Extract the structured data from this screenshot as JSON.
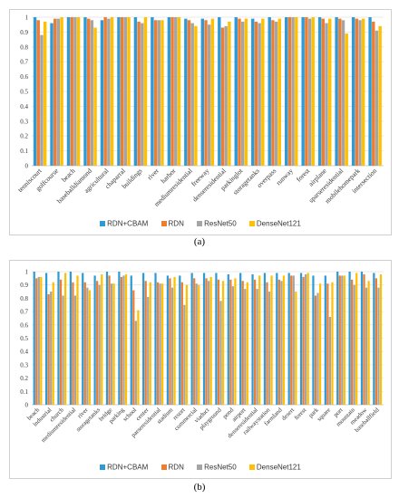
{
  "colors": [
    "#2e9bd6",
    "#ed7d31",
    "#a5a5a5",
    "#ffc000"
  ],
  "chart_data": [
    {
      "type": "bar",
      "panel_label": "(a)",
      "ylim": [
        0,
        1
      ],
      "yticks": [
        "0",
        "0.1",
        "0.2",
        "0.3",
        "0.4",
        "0.5",
        "0.6",
        "0.7",
        "0.8",
        "0.9",
        "1"
      ],
      "grid": true,
      "legend_position": "bottom",
      "categories": [
        "tenniscourt",
        "golfcourse",
        "beach",
        "baseballdiamond",
        "agricultural",
        "chaparral",
        "buildings",
        "river",
        "harbor",
        "mediumresidential",
        "freeway",
        "denseresidential",
        "parkinglot",
        "storagetanks",
        "overpass",
        "runway",
        "forest",
        "airplane",
        "sparseresidential",
        "mobilehomepark",
        "intersection"
      ],
      "series": [
        {
          "name": "RDN+CBAM",
          "values": [
            1,
            0.96,
            1,
            1,
            0.98,
            1,
            1,
            1,
            1,
            0.99,
            0.99,
            1,
            1,
            0.99,
            1,
            1,
            1,
            1,
            1,
            1,
            1
          ]
        },
        {
          "name": "RDN",
          "values": [
            0.98,
            0.99,
            1,
            0.99,
            1,
            1,
            0.97,
            0.98,
            1,
            0.98,
            0.98,
            0.93,
            0.99,
            0.97,
            0.98,
            1,
            1,
            0.99,
            0.99,
            0.99,
            0.97
          ]
        },
        {
          "name": "ResNet50",
          "values": [
            0.88,
            0.99,
            1,
            0.98,
            0.99,
            1,
            0.96,
            0.98,
            1,
            0.96,
            0.95,
            0.94,
            0.97,
            0.96,
            0.97,
            1,
            0.99,
            0.96,
            0.98,
            0.98,
            0.91
          ]
        },
        {
          "name": "DenseNet121",
          "values": [
            0.97,
            1,
            1,
            0.93,
            1,
            1,
            1,
            0.98,
            1,
            0.94,
            0.99,
            0.97,
            0.99,
            0.99,
            0.99,
            1,
            1,
            0.99,
            0.89,
            0.99,
            0.94
          ]
        }
      ]
    },
    {
      "type": "bar",
      "panel_label": "(b)",
      "ylim": [
        0,
        1
      ],
      "yticks": [
        "0",
        "0.1",
        "0.2",
        "0.3",
        "0.4",
        "0.5",
        "0.6",
        "0.7",
        "0.8",
        "0.9",
        "1"
      ],
      "grid": true,
      "legend_position": "bottom",
      "categories": [
        "beach",
        "industrial",
        "church",
        "mediumresidential",
        "river",
        "storagetanks",
        "bridge",
        "parking",
        "school",
        "center",
        "parseresidential",
        "stadium",
        "resort",
        "commercial",
        "viaduct",
        "playground",
        "pond",
        "airport",
        "denseresidential",
        "railwaystation",
        "farmland",
        "desert",
        "forest",
        "park",
        "square",
        "port",
        "mountain",
        "meadow",
        "baseballfield"
      ],
      "series": [
        {
          "name": "RDN+CBAM",
          "values": [
            1,
            0.99,
            1,
            1,
            0.99,
            0.97,
            1,
            1,
            0.97,
            0.99,
            0.99,
            0.97,
            0.97,
            0.99,
            0.99,
            0.99,
            0.98,
            0.99,
            0.98,
            0.99,
            0.99,
            0.99,
            0.99,
            0.97,
            0.97,
            1,
            1,
            1,
            0.99
          ]
        },
        {
          "name": "RDN",
          "values": [
            0.95,
            0.83,
            0.94,
            0.92,
            0.92,
            0.93,
            0.97,
            0.96,
            0.86,
            0.93,
            0.92,
            0.95,
            0.92,
            0.95,
            0.95,
            0.94,
            0.94,
            0.93,
            0.94,
            0.92,
            0.94,
            0.97,
            0.96,
            0.82,
            0.91,
            0.97,
            0.94,
            0.98,
            0.95
          ]
        },
        {
          "name": "ResNet50",
          "values": [
            0.96,
            0.85,
            0.82,
            0.82,
            0.88,
            0.9,
            0.91,
            0.97,
            0.63,
            0.81,
            0.91,
            0.88,
            0.75,
            0.91,
            0.93,
            0.78,
            0.89,
            0.87,
            0.87,
            0.85,
            0.93,
            0.97,
            0.98,
            0.84,
            0.66,
            0.97,
            0.9,
            0.88,
            0.88
          ]
        },
        {
          "name": "DenseNet121",
          "values": [
            0.96,
            0.92,
            0.99,
            0.97,
            0.86,
            0.98,
            0.91,
            0.98,
            0.71,
            0.92,
            0.91,
            0.96,
            0.9,
            0.9,
            0.96,
            0.93,
            0.95,
            0.92,
            0.97,
            0.97,
            0.97,
            0.85,
            0.99,
            0.91,
            0.92,
            0.97,
            0.99,
            0.93,
            0.98
          ]
        }
      ]
    }
  ]
}
